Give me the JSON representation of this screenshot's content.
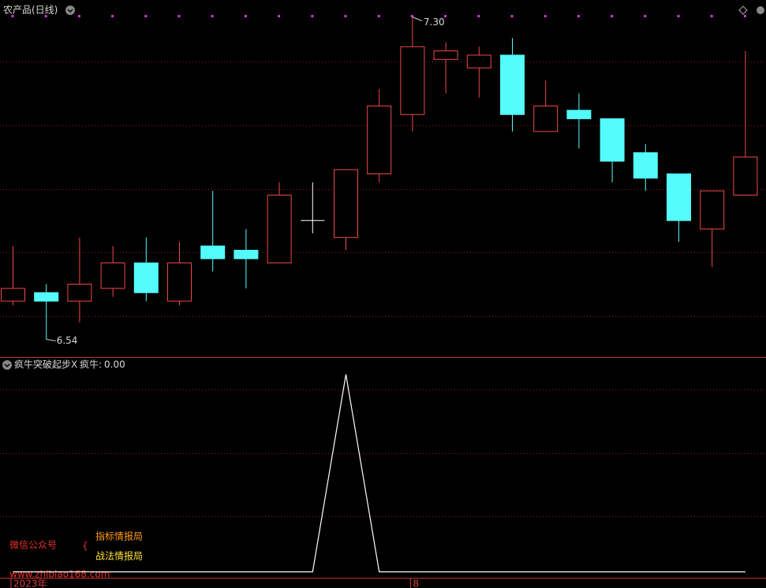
{
  "chart_data": [
    {
      "type": "candlestick",
      "title": "农产品(日线)",
      "categories": [
        "2023年",
        null,
        null,
        null,
        null,
        null,
        null,
        null,
        null,
        null,
        null,
        null,
        "8",
        null,
        null,
        null,
        null,
        null,
        null,
        null,
        null,
        null,
        null
      ],
      "open": [
        6.63,
        6.65,
        6.63,
        6.66,
        6.72,
        6.63,
        6.76,
        6.75,
        6.72,
        6.82,
        6.78,
        6.93,
        7.07,
        7.2,
        7.18,
        7.21,
        7.03,
        7.08,
        7.06,
        6.98,
        6.93,
        6.8,
        6.88
      ],
      "high": [
        6.76,
        6.67,
        6.78,
        6.76,
        6.78,
        6.77,
        6.89,
        6.8,
        6.91,
        6.91,
        6.94,
        7.13,
        7.3,
        7.24,
        7.23,
        7.25,
        7.15,
        7.12,
        7.06,
        7.0,
        6.93,
        6.89,
        7.22
      ],
      "low": [
        6.62,
        6.54,
        6.58,
        6.64,
        6.63,
        6.62,
        6.7,
        6.66,
        6.72,
        6.79,
        6.75,
        6.91,
        7.03,
        7.12,
        7.11,
        7.03,
        7.03,
        6.99,
        6.91,
        6.89,
        6.77,
        6.71,
        6.88
      ],
      "close": [
        6.66,
        6.63,
        6.67,
        6.72,
        6.65,
        6.72,
        6.73,
        6.73,
        6.88,
        6.82,
        6.94,
        7.09,
        7.23,
        7.22,
        7.21,
        7.07,
        7.09,
        7.06,
        6.96,
        6.92,
        6.82,
        6.89,
        6.97
      ],
      "max_label": "7.30",
      "min_label": "6.54",
      "ylim": [
        6.5,
        7.34
      ],
      "up_color": "#f04848",
      "down_color": "#54fcfc",
      "doji_color": "#ffffff"
    },
    {
      "type": "line",
      "title": "疯牛突破起步X",
      "series": [
        {
          "name": "疯牛",
          "color": "#ffffff",
          "values": [
            0,
            0,
            0,
            0,
            0,
            0,
            0,
            0,
            0,
            0,
            1,
            0,
            0,
            0,
            0,
            0,
            0,
            0,
            0,
            0,
            0,
            0,
            0
          ]
        }
      ],
      "last_value_label": "0.00",
      "ylim": [
        -0.03,
        1.08
      ]
    }
  ],
  "watermark": {
    "left": "微信公众号",
    "top": "指标情报局",
    "bottom": "战法情报局",
    "url": "www.zhibiao168.com"
  }
}
